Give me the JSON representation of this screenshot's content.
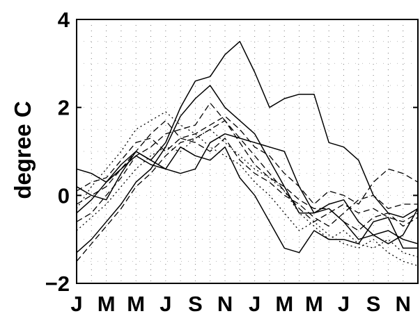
{
  "chart_data": {
    "type": "line",
    "title": "",
    "xlabel": "",
    "ylabel": "degree  C",
    "ylim": [
      -2,
      4
    ],
    "xlim": [
      1,
      24
    ],
    "grid": "dotted",
    "legend": "none",
    "x_tick_positions": [
      1,
      3,
      5,
      7,
      9,
      11,
      13,
      15,
      17,
      19,
      21,
      23
    ],
    "x_tick_labels": [
      "J",
      "M",
      "M",
      "J",
      "S",
      "N",
      "J",
      "M",
      "M",
      "J",
      "S",
      "N"
    ],
    "y_tick_values": [
      -2,
      0,
      2,
      4
    ],
    "y_tick_labels": [
      "−2",
      "0",
      "2",
      "4"
    ],
    "x": [
      1,
      2,
      3,
      4,
      5,
      6,
      7,
      8,
      9,
      10,
      11,
      12,
      13,
      14,
      15,
      16,
      17,
      18,
      19,
      20,
      21,
      22,
      23,
      24
    ],
    "series": [
      {
        "style": "solid",
        "values": [
          0.2,
          0.0,
          -0.1,
          0.5,
          1.0,
          0.8,
          1.2,
          2.0,
          2.6,
          2.7,
          3.2,
          3.5,
          2.8,
          2.0,
          2.2,
          2.3,
          2.3,
          1.2,
          1.1,
          0.8,
          0.0,
          -0.4,
          -0.5,
          -0.3
        ]
      },
      {
        "style": "solid",
        "values": [
          -1.3,
          -1.0,
          -0.6,
          -0.2,
          0.3,
          0.6,
          1.1,
          1.8,
          2.2,
          2.5,
          2.0,
          1.7,
          1.4,
          0.8,
          0.2,
          -0.4,
          -0.4,
          -0.2,
          -0.1,
          -0.6,
          -0.9,
          -0.8,
          -1.0,
          -1.1
        ]
      },
      {
        "style": "solid",
        "values": [
          0.6,
          0.5,
          0.3,
          0.6,
          0.9,
          0.7,
          0.6,
          0.5,
          0.6,
          1.2,
          1.4,
          1.3,
          1.2,
          1.1,
          1.0,
          0.2,
          -0.4,
          -0.3,
          -0.6,
          -1.0,
          -0.9,
          -1.1,
          -0.9,
          -0.3
        ]
      },
      {
        "style": "solid",
        "values": [
          -0.4,
          -0.1,
          0.3,
          0.7,
          1.0,
          0.8,
          0.6,
          1.1,
          0.9,
          0.8,
          1.1,
          0.4,
          0.0,
          -0.6,
          -1.2,
          -1.3,
          -0.8,
          -1.0,
          -1.0,
          -1.1,
          -0.6,
          -0.5,
          -1.2,
          -1.2
        ]
      },
      {
        "style": "dashed",
        "values": [
          -0.6,
          -0.4,
          0.0,
          0.4,
          0.9,
          1.1,
          1.4,
          1.5,
          1.6,
          2.1,
          1.7,
          1.3,
          0.9,
          0.5,
          0.1,
          -0.3,
          -0.6,
          -0.4,
          -0.2,
          -0.4,
          -0.3,
          -0.5,
          -0.6,
          -0.4
        ]
      },
      {
        "style": "dashed",
        "values": [
          -1.5,
          -1.1,
          -0.7,
          -0.3,
          0.2,
          0.5,
          0.9,
          1.2,
          1.3,
          1.5,
          1.7,
          1.2,
          0.7,
          0.4,
          0.2,
          -0.1,
          -0.3,
          -0.3,
          -0.6,
          -0.8,
          -0.5,
          -0.4,
          -0.7,
          -0.5
        ]
      },
      {
        "style": "dashed",
        "values": [
          0.1,
          0.3,
          0.4,
          0.8,
          1.2,
          1.3,
          1.0,
          1.3,
          1.4,
          1.6,
          1.8,
          1.5,
          1.1,
          0.9,
          0.5,
          0.2,
          -0.2,
          0.1,
          0.0,
          -0.2,
          0.3,
          0.6,
          0.5,
          0.3
        ]
      },
      {
        "style": "dashed",
        "values": [
          -0.2,
          0.0,
          0.2,
          0.6,
          1.0,
          1.4,
          1.7,
          1.3,
          1.2,
          1.0,
          1.3,
          0.8,
          0.5,
          0.3,
          0.0,
          -0.2,
          -0.5,
          -0.7,
          -0.4,
          -0.1,
          0.0,
          -0.3,
          -0.2,
          -0.2
        ]
      },
      {
        "style": "dotted",
        "values": [
          -0.3,
          0.2,
          0.6,
          1.0,
          1.5,
          1.7,
          1.9,
          1.6,
          1.4,
          1.1,
          0.9,
          0.7,
          0.3,
          0.0,
          -0.4,
          -0.8,
          -0.6,
          -0.9,
          -1.1,
          -1.2,
          -1.0,
          -1.3,
          -1.5,
          -1.6
        ]
      },
      {
        "style": "dotted",
        "values": [
          -0.8,
          -0.5,
          -0.2,
          0.2,
          0.6,
          0.9,
          1.1,
          1.0,
          1.3,
          1.5,
          1.2,
          0.9,
          0.6,
          0.4,
          0.1,
          -0.4,
          -0.7,
          -1.0,
          -0.8,
          -1.1,
          -1.2,
          -1.0,
          -1.3,
          -1.4
        ]
      }
    ]
  }
}
